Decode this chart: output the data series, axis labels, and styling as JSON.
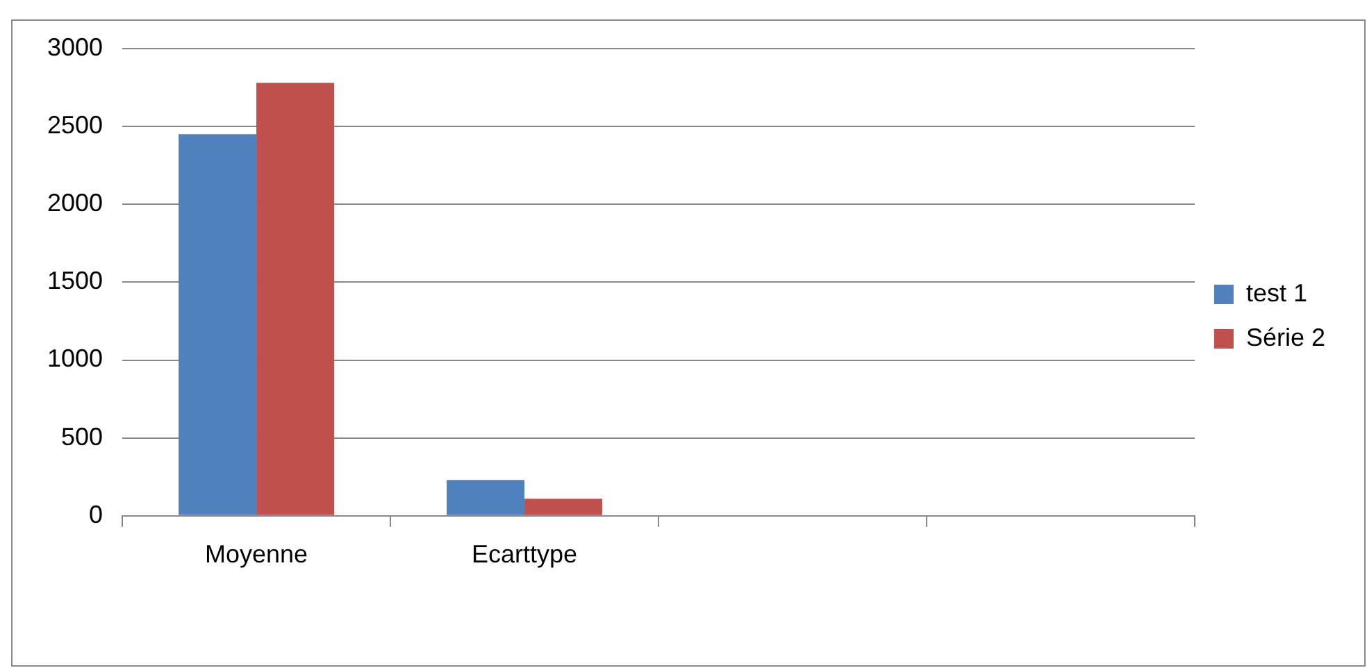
{
  "chart_data": {
    "type": "bar",
    "categories": [
      "Moyenne",
      "Ecarttype",
      null,
      null
    ],
    "series": [
      {
        "name": "test 1",
        "color": "#4f81bd",
        "values": [
          2450,
          230,
          null,
          null
        ]
      },
      {
        "name": "Série 2",
        "color": "#c0504d",
        "values": [
          2780,
          110,
          null,
          null
        ]
      }
    ],
    "ylim": [
      0,
      3000
    ],
    "yticks": [
      0,
      500,
      1000,
      1500,
      2000,
      2500,
      3000
    ],
    "grid": "y",
    "legend": "right"
  }
}
